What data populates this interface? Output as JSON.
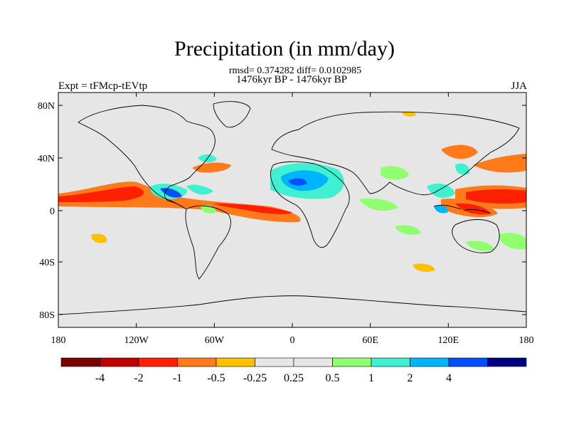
{
  "title": "Precipitation (in mm/day)",
  "stats_line": "rmsd= 0.374282 diff= 0.0102985",
  "period_line": "1476kyr BP - 1476kyr BP",
  "experiment_label": "Expt = tFMcp-tEVtp",
  "season_label": "JJA",
  "lat_ticks": [
    "80N",
    "40N",
    "0",
    "40S",
    "80S"
  ],
  "lon_ticks": [
    "180",
    "120W",
    "60W",
    "0",
    "60E",
    "120E",
    "180"
  ],
  "colorbar": {
    "colors": [
      "#7f0000",
      "#c00000",
      "#ff2000",
      "#ff7a1a",
      "#ffc000",
      "#e6e6e6",
      "#e6e6e6",
      "#90ff70",
      "#40f0d0",
      "#00b4ff",
      "#0050ff",
      "#000080"
    ],
    "labels": [
      "-4",
      "-2",
      "-1",
      "-0.5",
      "-0.25",
      "0.25",
      "0.5",
      "1",
      "2",
      "4"
    ]
  },
  "colors": {
    "ocean_land_bg": "#e6e6e6",
    "coast": "#000000"
  }
}
